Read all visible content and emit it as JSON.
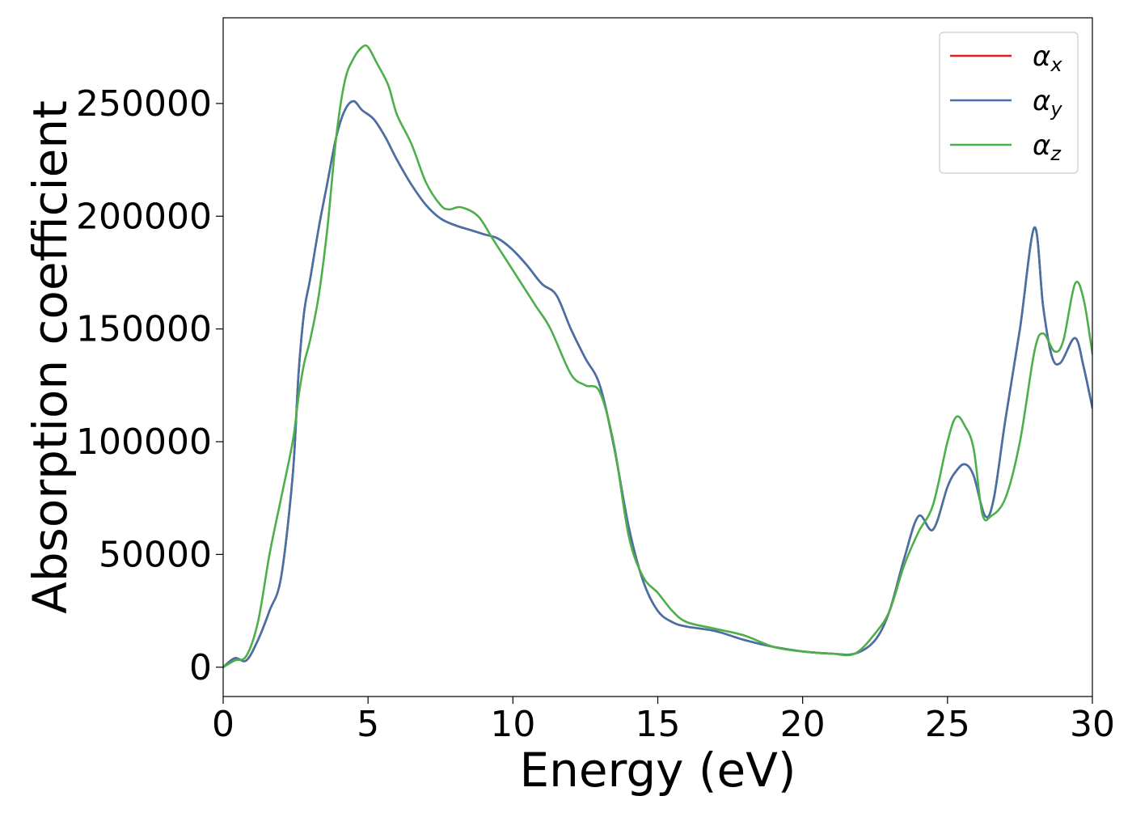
{
  "chart_data": {
    "type": "line",
    "xlabel": "Energy (eV)",
    "ylabel": "Absorption coefficient",
    "xlim": [
      0,
      30
    ],
    "ylim": [
      -13000,
      288000
    ],
    "xticks": [
      0,
      5,
      10,
      15,
      20,
      25,
      30
    ],
    "yticks": [
      0,
      50000,
      100000,
      150000,
      200000,
      250000
    ],
    "grid": false,
    "legend_position": "top-right",
    "series": [
      {
        "name": "αx",
        "sym": "α",
        "sub": "x",
        "color": "#e41a1c",
        "x": [
          0,
          0.4,
          0.8,
          1.2,
          1.6,
          2.0,
          2.4,
          2.6,
          2.8,
          3.0,
          3.3,
          3.6,
          3.9,
          4.2,
          4.5,
          4.8,
          5.2,
          5.6,
          6.0,
          6.5,
          7.0,
          7.5,
          8.0,
          8.5,
          9.0,
          9.5,
          10.0,
          10.5,
          11.0,
          11.5,
          12.0,
          12.5,
          13.0,
          13.5,
          14.0,
          14.5,
          15.0,
          15.5,
          16.0,
          17.0,
          18.0,
          19.0,
          20.0,
          21.0,
          21.8,
          22.5,
          23.0,
          23.5,
          24.0,
          24.5,
          25.0,
          25.3,
          25.6,
          25.9,
          26.3,
          26.6,
          27.0,
          27.5,
          28.0,
          28.3,
          28.6,
          28.9,
          29.4,
          29.7,
          30.0
        ],
        "y": [
          0,
          4000,
          3000,
          12000,
          25000,
          40000,
          85000,
          130000,
          158000,
          172000,
          195000,
          215000,
          235000,
          247000,
          251000,
          247000,
          243000,
          235000,
          225000,
          214000,
          205000,
          199000,
          196000,
          194000,
          192000,
          190000,
          185000,
          178000,
          170000,
          165000,
          150000,
          137000,
          125000,
          97000,
          62000,
          38000,
          25000,
          20000,
          18000,
          16000,
          12000,
          9000,
          7000,
          6000,
          6000,
          12000,
          25000,
          48000,
          67000,
          61000,
          80000,
          87000,
          90000,
          85000,
          67000,
          75000,
          110000,
          150000,
          195000,
          160000,
          138000,
          135000,
          146000,
          133000,
          115000
        ]
      },
      {
        "name": "αy",
        "sym": "α",
        "sub": "y",
        "color": "#4472a8",
        "x": [
          0,
          0.4,
          0.8,
          1.2,
          1.6,
          2.0,
          2.4,
          2.6,
          2.8,
          3.0,
          3.3,
          3.6,
          3.9,
          4.2,
          4.5,
          4.8,
          5.2,
          5.6,
          6.0,
          6.5,
          7.0,
          7.5,
          8.0,
          8.5,
          9.0,
          9.5,
          10.0,
          10.5,
          11.0,
          11.5,
          12.0,
          12.5,
          13.0,
          13.5,
          14.0,
          14.5,
          15.0,
          15.5,
          16.0,
          17.0,
          18.0,
          19.0,
          20.0,
          21.0,
          21.8,
          22.5,
          23.0,
          23.5,
          24.0,
          24.5,
          25.0,
          25.3,
          25.6,
          25.9,
          26.3,
          26.6,
          27.0,
          27.5,
          28.0,
          28.3,
          28.6,
          28.9,
          29.4,
          29.7,
          30.0
        ],
        "y": [
          0,
          4000,
          3000,
          12000,
          25000,
          40000,
          85000,
          130000,
          158000,
          172000,
          195000,
          215000,
          235000,
          247000,
          251000,
          247000,
          243000,
          235000,
          225000,
          214000,
          205000,
          199000,
          196000,
          194000,
          192000,
          190000,
          185000,
          178000,
          170000,
          165000,
          150000,
          137000,
          125000,
          97000,
          62000,
          38000,
          25000,
          20000,
          18000,
          16000,
          12000,
          9000,
          7000,
          6000,
          6000,
          12000,
          25000,
          48000,
          67000,
          61000,
          80000,
          87000,
          90000,
          85000,
          67000,
          75000,
          110000,
          150000,
          195000,
          160000,
          138000,
          135000,
          146000,
          133000,
          115000
        ]
      },
      {
        "name": "αz",
        "sym": "α",
        "sub": "z",
        "color": "#4daf4a",
        "x": [
          0,
          0.4,
          0.8,
          1.2,
          1.6,
          2.0,
          2.4,
          2.6,
          2.8,
          3.0,
          3.3,
          3.6,
          3.9,
          4.2,
          4.5,
          4.8,
          5.0,
          5.3,
          5.7,
          6.0,
          6.5,
          7.0,
          7.5,
          7.8,
          8.2,
          8.8,
          9.3,
          9.8,
          10.3,
          10.8,
          11.3,
          12.0,
          12.5,
          13.0,
          13.5,
          14.0,
          14.5,
          15.0,
          15.5,
          16.0,
          17.0,
          18.0,
          19.0,
          20.0,
          21.0,
          21.8,
          22.5,
          23.0,
          23.5,
          24.0,
          24.5,
          25.0,
          25.3,
          25.6,
          25.9,
          26.2,
          26.5,
          27.0,
          27.5,
          28.0,
          28.3,
          28.7,
          29.0,
          29.4,
          29.7,
          30.0
        ],
        "y": [
          0,
          3000,
          5000,
          20000,
          50000,
          75000,
          100000,
          120000,
          135000,
          145000,
          165000,
          195000,
          235000,
          260000,
          270000,
          275000,
          275000,
          268000,
          258000,
          245000,
          232000,
          215000,
          205000,
          203000,
          204000,
          200000,
          190000,
          180000,
          170000,
          160000,
          150000,
          130000,
          125000,
          122000,
          98000,
          58000,
          40000,
          33000,
          25000,
          20000,
          17000,
          14000,
          9000,
          7000,
          6000,
          6000,
          15000,
          25000,
          45000,
          60000,
          72000,
          100000,
          111000,
          107000,
          97000,
          68000,
          67000,
          75000,
          100000,
          140000,
          148000,
          140000,
          145000,
          170000,
          163000,
          139000
        ]
      }
    ]
  }
}
